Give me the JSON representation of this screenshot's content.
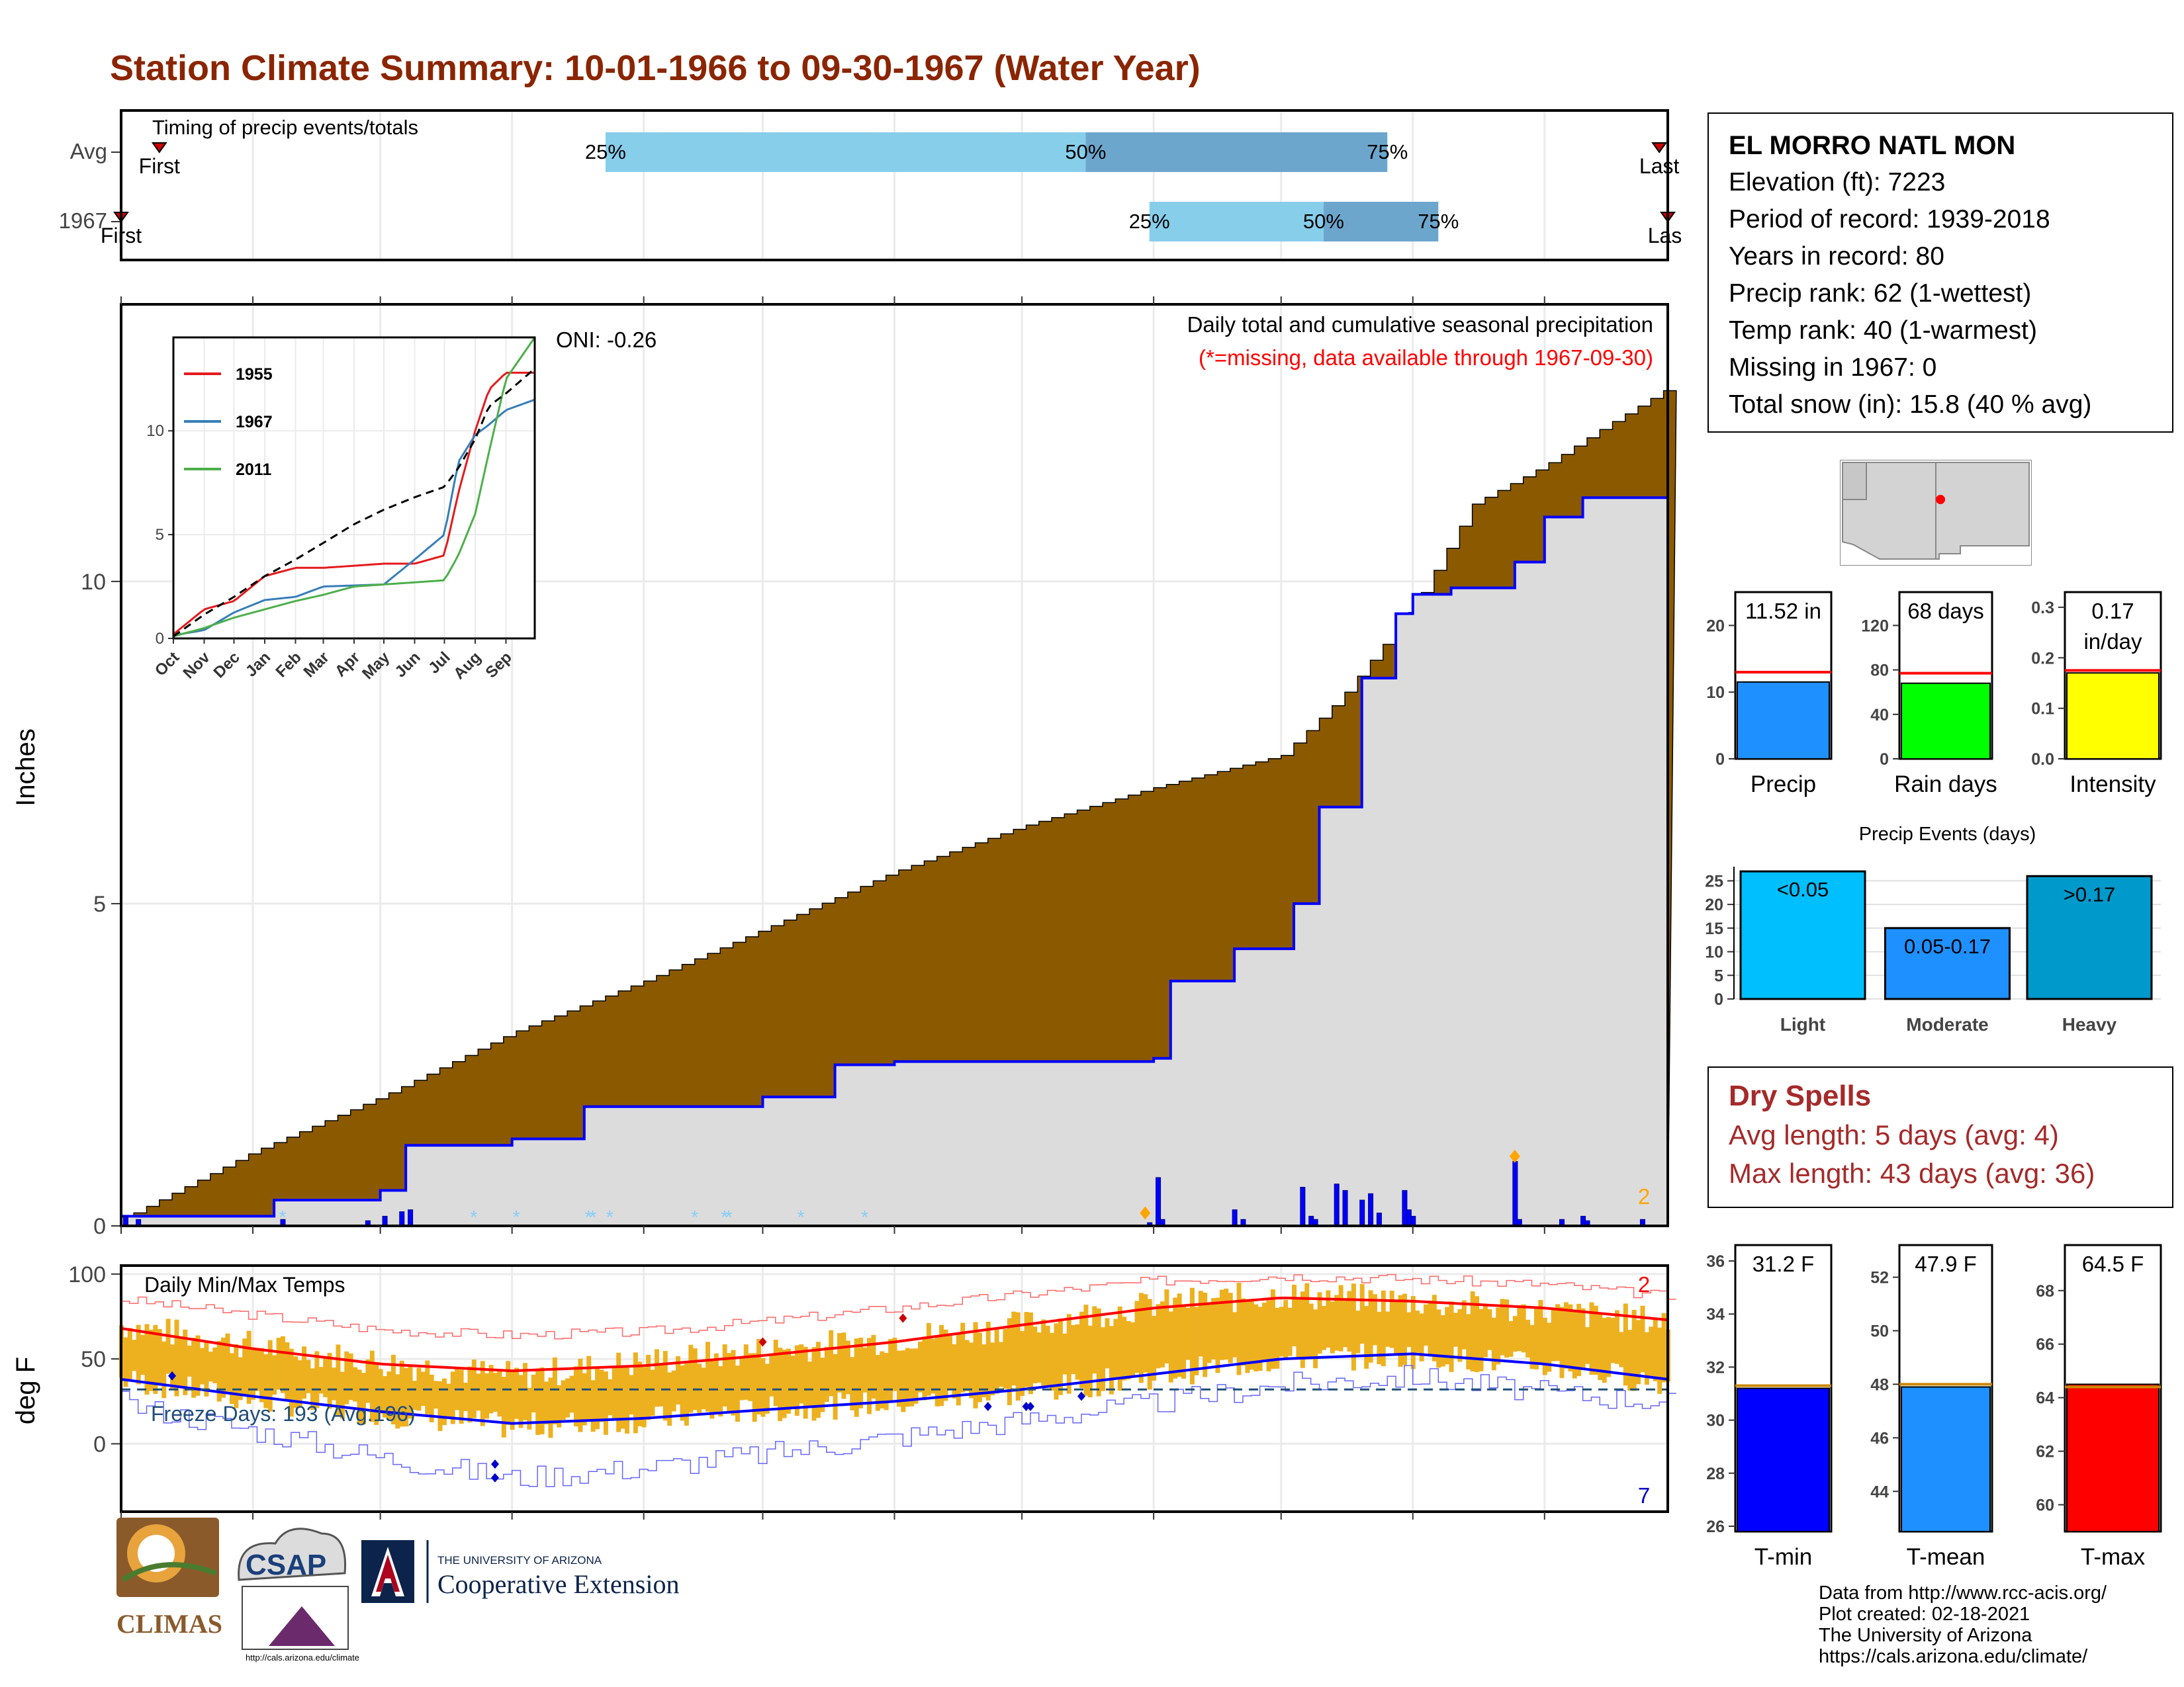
{
  "title": "Station Climate Summary: 10-01-1966 to 09-30-1967 (Water Year)",
  "station": {
    "name": "EL MORRO NATL MON",
    "lines": [
      "Elevation (ft): 7223",
      "Period of record: 1939-2018",
      "Years in record: 80",
      "Precip rank: 62 (1-wettest)",
      "Temp rank: 40 (1-warmest)",
      "Missing in 1967: 0",
      "Total snow (in): 15.8 (40 % avg)"
    ]
  },
  "dry_spells": {
    "title": "Dry Spells",
    "avg": "Avg length: 5 days (avg: 4)",
    "max": "Max length: 43 days (avg: 36)"
  },
  "credits": [
    "Data from http://www.rcc-acis.org/",
    "Plot created: 02-18-2021",
    "The University of Arizona",
    "https://cals.arizona.edu/climate/"
  ],
  "logos": {
    "climas": "CLIMAS",
    "csap": "CSAP",
    "csap_url": "http://cals.arizona.edu/climate",
    "ua_small": "THE UNIVERSITY OF ARIZONA",
    "ua_big": "Cooperative Extension"
  },
  "colors": {
    "title": "#8B2500",
    "cumulative_avg_fill": "#8B5A00",
    "cumulative_obs_fill": "#DCDCDC",
    "cumulative_obs_line": "#0000FF",
    "timing_light": "#87CEEB",
    "timing_dark": "#6CA6CD",
    "temp_bars": "#EDB120",
    "tmax_avg": "#FF0000",
    "tmin_avg": "#0000FF",
    "precip_bar": "#1E90FF",
    "raindays_bar": "#00FF00",
    "intensity_bar": "#FFFF00",
    "light_bar": "#00BFFF",
    "moderate_bar": "#1E90FF",
    "heavy_bar": "#0099CC",
    "tmin_bar": "#0000FF",
    "tmean_bar": "#1E90FF",
    "tmax_bar": "#FF0000",
    "dry_text": "#A52A2A"
  },
  "chart_data": [
    {
      "id": "timing",
      "type": "bar",
      "title": "Timing of precip events/totals",
      "rows": [
        {
          "label": "Avg",
          "first_label": "First",
          "last_label": "Last",
          "first": "10-10",
          "last": "09-28",
          "p25": "01-23",
          "p50": "05-16",
          "p75": "07-26",
          "labels": [
            "25%",
            "50%",
            "75%"
          ]
        },
        {
          "label": "1967",
          "first_label": "First",
          "last_label": "Last",
          "first": "10-01",
          "last": "09-30",
          "p25": "05-31",
          "p50": "07-11",
          "p75": "08-07",
          "labels": [
            "25%",
            "50%",
            "75%"
          ]
        }
      ]
    },
    {
      "id": "precip",
      "type": "area",
      "ylabel": "Inches",
      "annotation": "Daily total and cumulative seasonal precipitation",
      "missing_note": "(*=missing, data available through 1967-09-30)",
      "oni": "ONI: -0.26",
      "count_label": "2",
      "yticks": [
        0,
        5,
        10
      ],
      "ylim": [
        0,
        14.3
      ],
      "xticks": [
        "Oct",
        "Nov",
        "Dec",
        "Jan",
        "Feb",
        "Mar",
        "Apr",
        "May",
        "Jun",
        "Jul",
        "Aug",
        "Sep"
      ],
      "avg_cumulative": {
        "x": [
          "10-01",
          "11-01",
          "12-01",
          "01-01",
          "02-01",
          "03-01",
          "04-01",
          "05-01",
          "06-01",
          "07-01",
          "07-15",
          "08-01",
          "08-15",
          "09-01",
          "09-15",
          "09-30"
        ],
        "y": [
          0.1,
          1.15,
          2.0,
          3.0,
          3.8,
          4.6,
          5.5,
          6.2,
          6.8,
          7.3,
          8.2,
          9.6,
          11.2,
          11.8,
          12.4,
          13.0
        ]
      },
      "obs_cumulative": {
        "x": [
          "10-01",
          "11-06",
          "12-01",
          "12-07",
          "01-01",
          "01-18",
          "02-01",
          "03-01",
          "03-18",
          "04-01",
          "05-01",
          "06-01",
          "06-05",
          "06-20",
          "07-04",
          "07-10",
          "07-20",
          "07-28",
          "08-01",
          "08-10",
          "08-25",
          "09-01",
          "09-10",
          "09-30"
        ],
        "y": [
          0.15,
          0.4,
          0.55,
          1.25,
          1.35,
          1.85,
          1.85,
          2.0,
          2.5,
          2.55,
          2.55,
          2.6,
          3.8,
          4.3,
          5.0,
          6.5,
          8.5,
          9.5,
          9.8,
          9.9,
          10.3,
          11.0,
          11.3,
          11.52
        ]
      },
      "daily_bars": {
        "x": [
          "10-02",
          "10-05",
          "11-08",
          "11-28",
          "12-02",
          "12-06",
          "12-08",
          "05-31",
          "06-02",
          "06-03",
          "06-20",
          "06-22",
          "07-06",
          "07-08",
          "07-09",
          "07-14",
          "07-16",
          "07-20",
          "07-22",
          "07-24",
          "07-30",
          "07-31",
          "08-01",
          "08-25",
          "08-26",
          "09-05",
          "09-10",
          "09-11",
          "09-24"
        ],
        "y": [
          0.15,
          0.1,
          0.1,
          0.08,
          0.15,
          0.22,
          0.25,
          0.05,
          0.75,
          0.1,
          0.25,
          0.1,
          0.6,
          0.15,
          0.1,
          0.65,
          0.55,
          0.4,
          0.5,
          0.2,
          0.55,
          0.25,
          0.15,
          1.0,
          0.1,
          0.1,
          0.15,
          0.08,
          0.1
        ]
      },
      "snow_markers": [
        "11-08",
        "12-23",
        "01-02",
        "01-19",
        "01-20",
        "01-24",
        "02-13",
        "02-20",
        "02-21",
        "03-10",
        "03-25"
      ],
      "inset": {
        "type": "line",
        "series": [
          {
            "name": "1955",
            "color": "#E41A1C",
            "x": [
              "10-01",
              "11-01",
              "12-01",
              "01-01",
              "02-01",
              "03-01",
              "04-01",
              "05-01",
              "06-01",
              "07-01",
              "07-15",
              "08-01",
              "08-15",
              "09-01",
              "09-30"
            ],
            "y": [
              0.2,
              1.4,
              1.8,
              3.0,
              3.4,
              3.4,
              3.5,
              3.6,
              3.6,
              4.0,
              7.0,
              10.0,
              12.0,
              12.8,
              12.8
            ]
          },
          {
            "name": "1967",
            "color": "#377EB8",
            "x": [
              "10-01",
              "11-01",
              "12-01",
              "01-01",
              "02-01",
              "03-01",
              "04-01",
              "05-01",
              "06-01",
              "07-01",
              "07-15",
              "08-01",
              "08-15",
              "09-01",
              "09-30"
            ],
            "y": [
              0.15,
              0.4,
              1.25,
              1.85,
              2.0,
              2.5,
              2.55,
              2.6,
              3.8,
              5.0,
              8.5,
              9.8,
              10.3,
              11.0,
              11.5
            ]
          },
          {
            "name": "2011",
            "color": "#4DAF4A",
            "x": [
              "10-01",
              "11-01",
              "12-01",
              "01-01",
              "02-01",
              "03-01",
              "04-01",
              "05-01",
              "06-01",
              "07-01",
              "07-15",
              "08-01",
              "08-15",
              "09-01",
              "09-30"
            ],
            "y": [
              0.1,
              0.5,
              1.0,
              1.4,
              1.8,
              2.1,
              2.5,
              2.6,
              2.7,
              2.8,
              4.0,
              6.0,
              9.0,
              12.5,
              14.5
            ]
          }
        ],
        "avg": {
          "x": [
            "10-01",
            "11-01",
            "12-01",
            "01-01",
            "02-01",
            "03-01",
            "04-01",
            "05-01",
            "06-01",
            "07-01",
            "07-15",
            "08-01",
            "08-15",
            "09-01",
            "09-30"
          ],
          "y": [
            0.1,
            1.15,
            2.0,
            3.0,
            3.8,
            4.6,
            5.5,
            6.2,
            6.8,
            7.3,
            8.2,
            9.6,
            11.2,
            11.8,
            13.0
          ]
        },
        "yticks": [
          0,
          5,
          10
        ],
        "xticks": [
          "Oct",
          "Nov",
          "Dec",
          "Jan",
          "Feb",
          "Mar",
          "Apr",
          "May",
          "Jun",
          "Jul",
          "Aug",
          "Sep"
        ]
      }
    },
    {
      "id": "temps",
      "type": "bar",
      "title": "Daily Min/Max Temps",
      "ylabel": "deg F",
      "freeze_label": "Freeze Days: 193 (Avg:196)",
      "freeze_line": 32,
      "max_count_label": "2",
      "min_count_label": "7",
      "yticks": [
        0,
        50,
        100
      ],
      "ylim": [
        -40,
        105
      ],
      "xticks": [
        "Oct",
        "Nov",
        "Dec",
        "Jan",
        "Feb",
        "Mar",
        "Apr",
        "May",
        "Jun",
        "Jul",
        "Aug",
        "Sep"
      ],
      "avg_tmax": {
        "x": [
          "10-01",
          "11-01",
          "12-01",
          "01-01",
          "02-01",
          "03-01",
          "04-01",
          "05-01",
          "06-01",
          "07-01",
          "08-01",
          "09-01",
          "09-30"
        ],
        "y": [
          68,
          56,
          47,
          43,
          46,
          52,
          60,
          70,
          80,
          86,
          84,
          80,
          73
        ]
      },
      "avg_tmin": {
        "x": [
          "10-01",
          "11-01",
          "12-01",
          "01-01",
          "02-01",
          "03-01",
          "04-01",
          "05-01",
          "06-01",
          "07-01",
          "08-01",
          "09-01",
          "09-30"
        ],
        "y": [
          38,
          28,
          19,
          12,
          15,
          20,
          25,
          32,
          41,
          50,
          53,
          47,
          38
        ]
      },
      "rec_tmax": {
        "x": [
          "10-01",
          "11-01",
          "12-01",
          "01-01",
          "02-01",
          "03-01",
          "04-01",
          "05-01",
          "06-01",
          "07-01",
          "08-01",
          "09-01",
          "09-30"
        ],
        "y": [
          85,
          76,
          67,
          64,
          66,
          72,
          80,
          88,
          96,
          99,
          97,
          94,
          87
        ]
      },
      "rec_tmin": {
        "x": [
          "10-01",
          "11-01",
          "12-01",
          "01-01",
          "02-01",
          "03-01",
          "04-01",
          "05-01",
          "06-01",
          "07-01",
          "08-01",
          "09-01",
          "09-30"
        ],
        "y": [
          24,
          8,
          -8,
          -20,
          -14,
          -6,
          4,
          14,
          24,
          35,
          40,
          30,
          25
        ]
      },
      "obs_tmax": {
        "x": [
          "10-01",
          "11-01",
          "12-01",
          "01-01",
          "02-01",
          "03-01",
          "04-01",
          "05-01",
          "06-01",
          "07-01",
          "08-01",
          "09-01",
          "09-30"
        ],
        "y": [
          70,
          58,
          48,
          40,
          48,
          55,
          62,
          70,
          82,
          88,
          84,
          78,
          72
        ]
      },
      "obs_tmin": {
        "x": [
          "10-01",
          "11-01",
          "12-01",
          "01-01",
          "02-01",
          "03-01",
          "04-01",
          "05-01",
          "06-01",
          "07-01",
          "08-01",
          "09-01",
          "09-30"
        ],
        "y": [
          38,
          26,
          18,
          10,
          14,
          20,
          24,
          30,
          40,
          50,
          52,
          46,
          36
        ]
      }
    },
    {
      "id": "precip_total",
      "type": "bar",
      "xlabel": "Precip",
      "label": "11.52 in",
      "value": 11.52,
      "avg": 13.0,
      "yticks": [
        0,
        10,
        20
      ],
      "ylim": [
        0,
        25
      ]
    },
    {
      "id": "rain_days",
      "type": "bar",
      "xlabel": "Rain days",
      "label": "68 days",
      "value": 68,
      "avg": 77,
      "yticks": [
        0,
        40,
        80,
        120
      ],
      "ylim": [
        0,
        150
      ]
    },
    {
      "id": "intensity",
      "type": "bar",
      "xlabel": "Intensity",
      "label1": "0.17",
      "label2": "in/day",
      "value": 0.17,
      "avg": 0.175,
      "yticks": [
        "0.0",
        "0.1",
        "0.2",
        "0.3"
      ],
      "ylim": [
        0,
        0.33
      ]
    },
    {
      "id": "precip_events",
      "type": "bar",
      "title": "Precip Events (days)",
      "categories": [
        "Light",
        "Moderate",
        "Heavy"
      ],
      "labels": [
        "<0.05",
        "0.05-0.17",
        ">0.17"
      ],
      "values": [
        27,
        15,
        26
      ],
      "yticks": [
        0,
        5,
        10,
        15,
        20,
        25
      ],
      "ylim": [
        0,
        28
      ]
    },
    {
      "id": "tmin",
      "type": "bar",
      "xlabel": "T-min",
      "label": "31.2 F",
      "value": 31.2,
      "avg": 31.3,
      "yticks": [
        26,
        28,
        30,
        32,
        34,
        36
      ],
      "ylim": [
        25.8,
        36.6
      ]
    },
    {
      "id": "tmean",
      "type": "bar",
      "xlabel": "T-mean",
      "label": "47.9 F",
      "value": 47.9,
      "avg": 48.0,
      "yticks": [
        44,
        46,
        48,
        50,
        52
      ],
      "ylim": [
        42.5,
        53.2
      ]
    },
    {
      "id": "tmax",
      "type": "bar",
      "xlabel": "T-max",
      "label": "64.5 F",
      "value": 64.5,
      "avg": 64.4,
      "yticks": [
        60,
        62,
        64,
        66,
        68
      ],
      "ylim": [
        59.0,
        69.7
      ]
    }
  ]
}
